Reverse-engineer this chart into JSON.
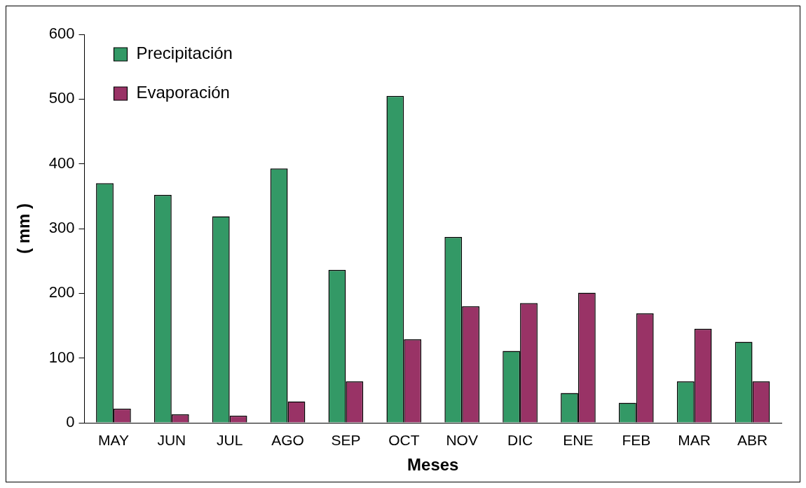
{
  "chart_data": {
    "type": "bar",
    "xlabel": "Meses",
    "ylabel": "( mm )",
    "categories": [
      "MAY",
      "JUN",
      "JUL",
      "AGO",
      "SEP",
      "OCT",
      "NOV",
      "DIC",
      "ENE",
      "FEB",
      "MAR",
      "ABR"
    ],
    "series": [
      {
        "name": "Precipitación",
        "color": "#339966",
        "values": [
          370,
          352,
          319,
          393,
          236,
          505,
          287,
          111,
          46,
          31,
          64,
          125
        ]
      },
      {
        "name": "Evaporación",
        "color": "#993366",
        "values": [
          22,
          13,
          11,
          33,
          64,
          129,
          180,
          185,
          201,
          169,
          145,
          64
        ]
      }
    ],
    "ylim": [
      0,
      600
    ],
    "yticks": [
      0,
      100,
      200,
      300,
      400,
      500,
      600
    ],
    "grid": false,
    "legend": "top left"
  }
}
